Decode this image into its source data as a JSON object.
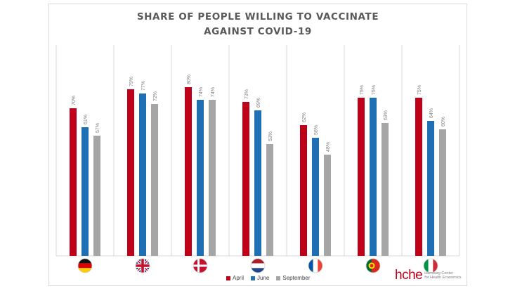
{
  "chart_data": {
    "type": "bar",
    "title_lines": [
      "SHARE OF PEOPLE WILLING TO VACCINATE",
      "AGAINST COVID-19"
    ],
    "categories": [
      "Germany",
      "United Kingdom",
      "Denmark",
      "Netherlands",
      "France",
      "Portugal",
      "Italy"
    ],
    "series": [
      {
        "name": "April",
        "color": "#c00018",
        "values": [
          70,
          79,
          80,
          73,
          62,
          75,
          75
        ]
      },
      {
        "name": "June",
        "color": "#1f6fb4",
        "values": [
          61,
          77,
          74,
          69,
          56,
          75,
          64
        ]
      },
      {
        "name": "September",
        "color": "#a6a6a6",
        "values": [
          57,
          72,
          74,
          53,
          48,
          63,
          60
        ]
      }
    ],
    "value_suffix": "%",
    "ylim": [
      0,
      100
    ],
    "grid": false,
    "legend_position": "bottom-center",
    "flag_icons": [
      "flag-germany-icon",
      "flag-uk-icon",
      "flag-denmark-icon",
      "flag-netherlands-icon",
      "flag-france-icon",
      "flag-portugal-icon",
      "flag-italy-icon"
    ]
  },
  "logo": {
    "text": "hche",
    "subtitle_lines": [
      "Hamburg Center",
      "for Health Economics"
    ]
  }
}
